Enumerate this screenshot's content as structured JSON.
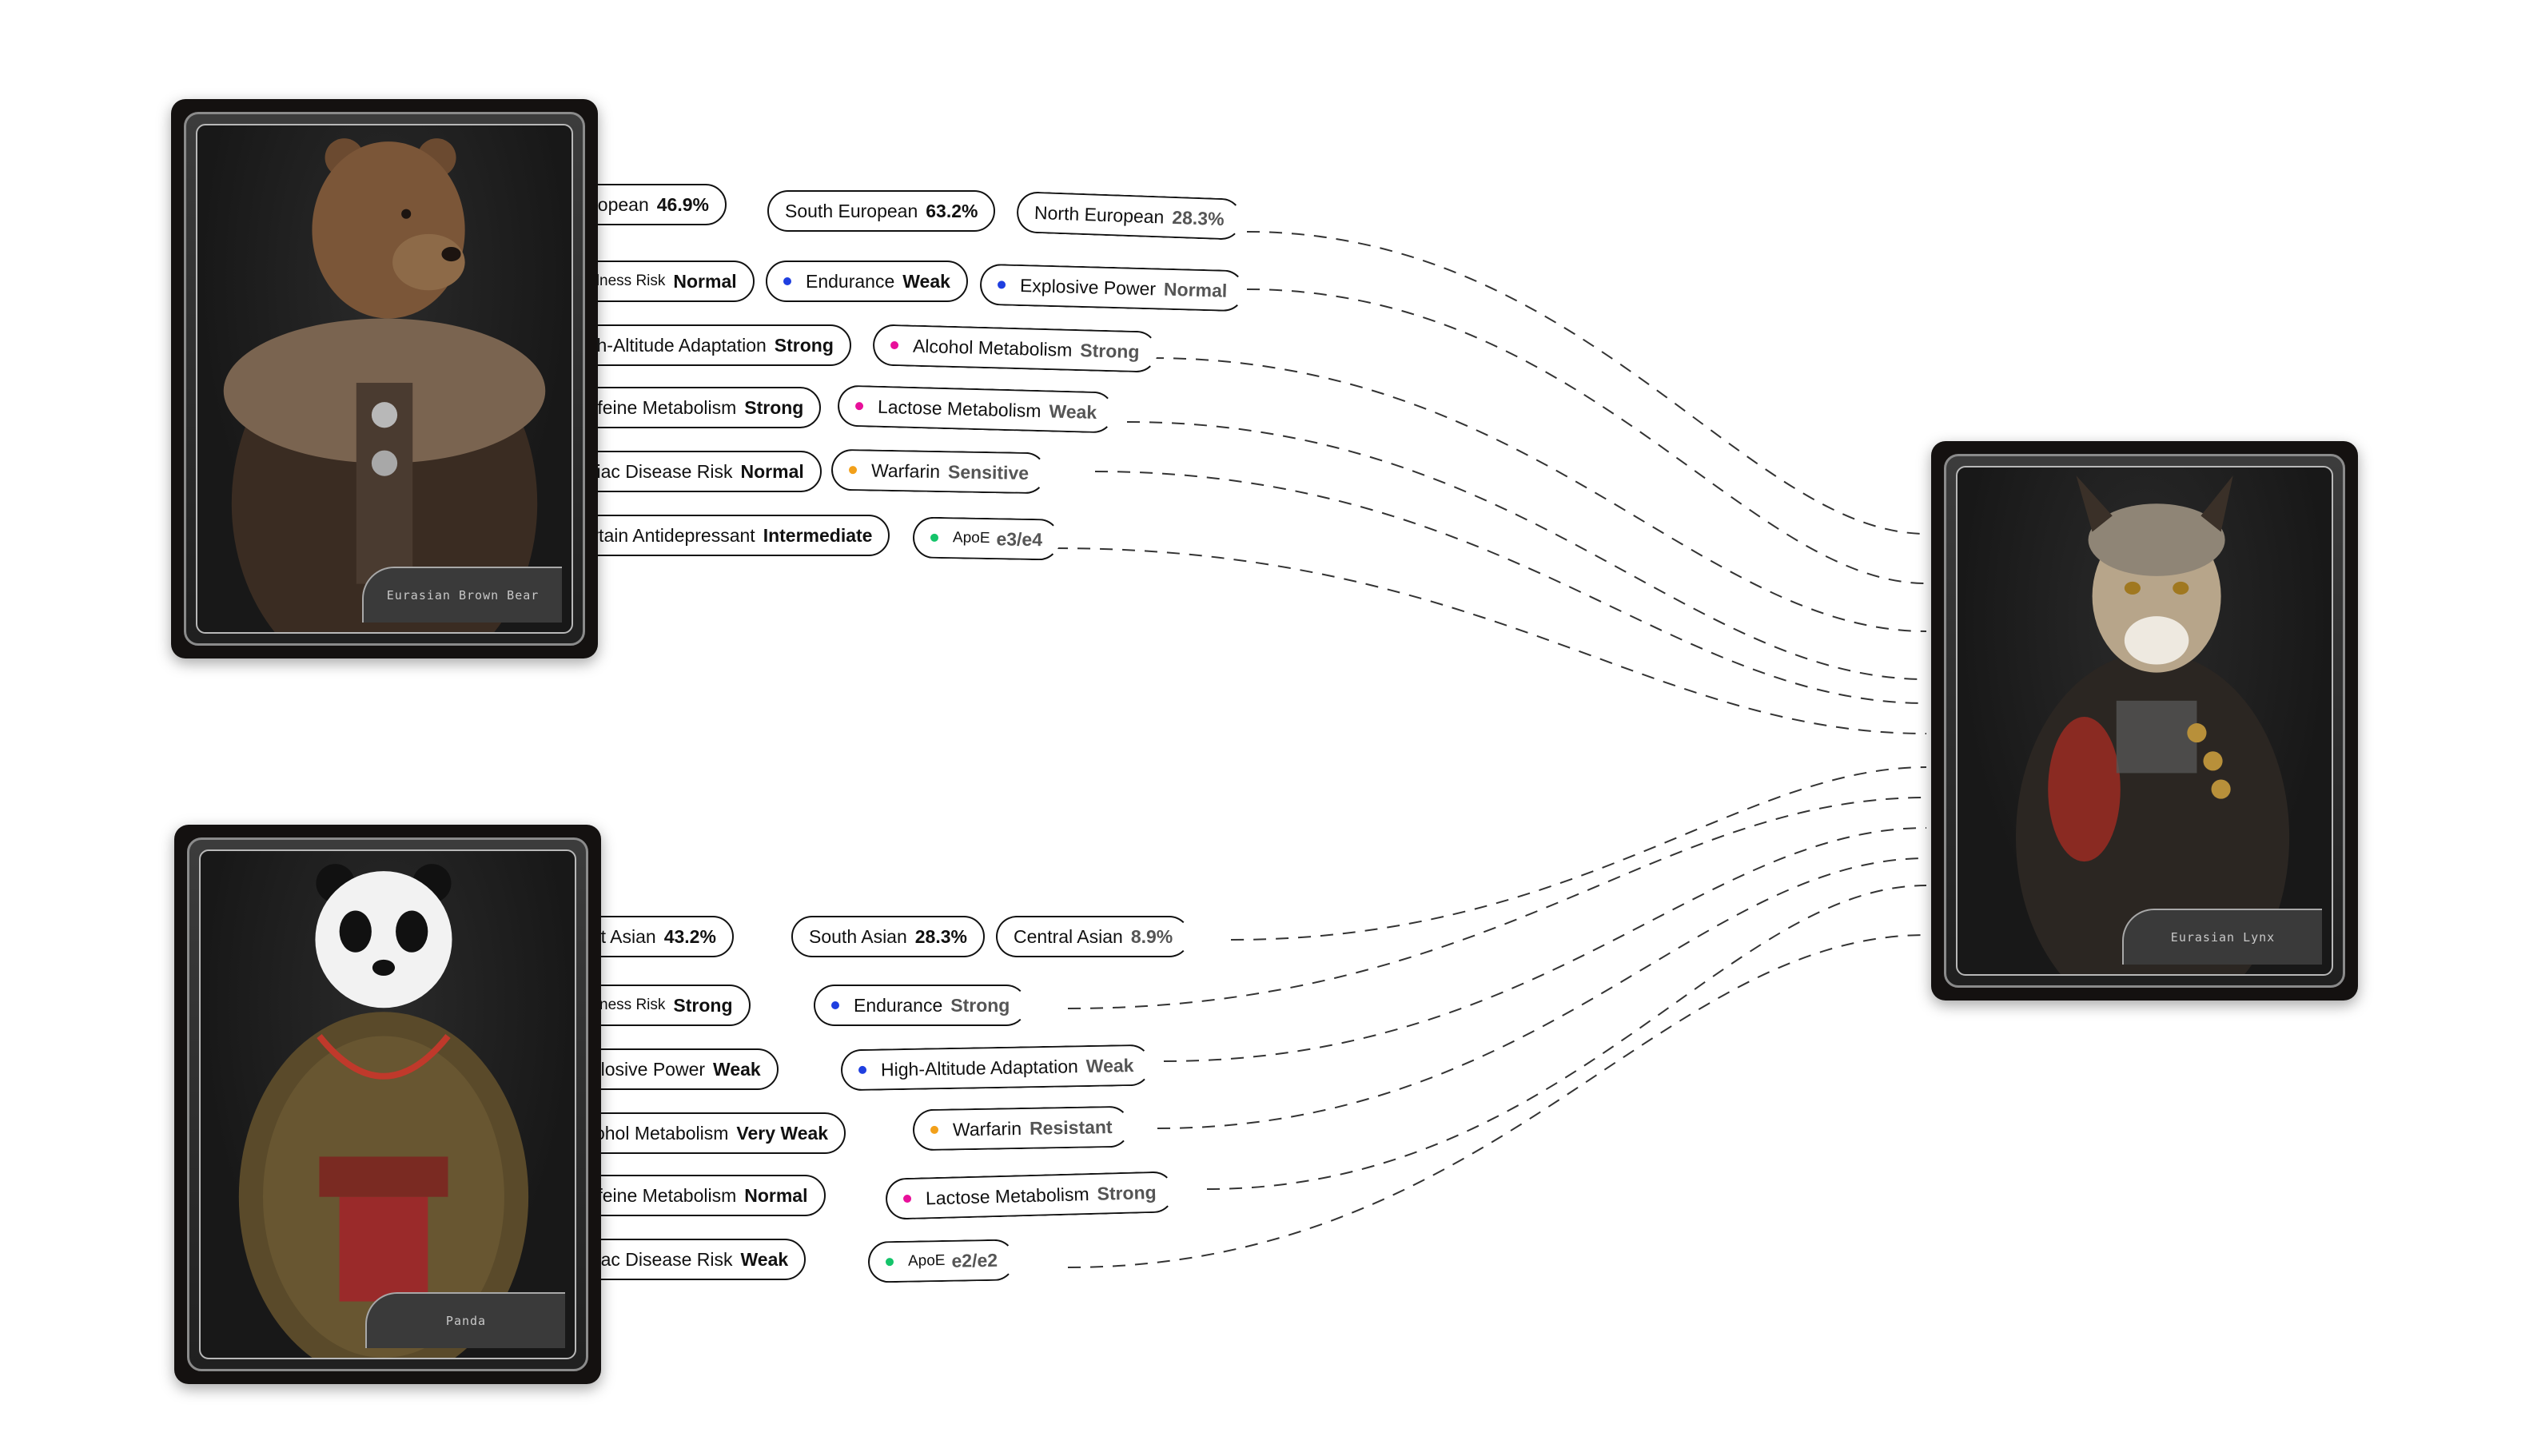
{
  "colors": {
    "blue": "#1f3fe0",
    "magenta": "#e8109a",
    "orange": "#f2a01a",
    "green": "#14c46a"
  },
  "bear": {
    "name": "Eurasian Brown Bear",
    "traits": [
      {
        "label": "European",
        "value": "46.9%"
      },
      {
        "label": "South European",
        "value": "63.2%"
      },
      {
        "label": "North European",
        "value": "28.3%"
      },
      {
        "label": "Baldness Risk",
        "value": "Normal"
      },
      {
        "label": "Endurance",
        "value": "Weak",
        "dot": "blue"
      },
      {
        "label": "Explosive Power",
        "value": "Normal",
        "dot": "blue"
      },
      {
        "label": "High-Altitude Adaptation",
        "value": "Strong"
      },
      {
        "label": "Alcohol Metabolism",
        "value": "Strong",
        "dot": "magenta"
      },
      {
        "label": "Caffeine Metabolism",
        "value": "Strong"
      },
      {
        "label": "Lactose Metabolism",
        "value": "Weak",
        "dot": "magenta"
      },
      {
        "label": "Celiac Disease Risk",
        "value": "Normal"
      },
      {
        "label": "Warfarin",
        "value": "Sensitive",
        "dot": "orange"
      },
      {
        "label": "Certain Antidepressant",
        "value": "Intermediate"
      },
      {
        "label": "ApoE",
        "value": "e3/e4",
        "dot": "green"
      }
    ]
  },
  "panda": {
    "name": "Panda",
    "traits": [
      {
        "label": "East Asian",
        "value": "43.2%"
      },
      {
        "label": "South Asian",
        "value": "28.3%"
      },
      {
        "label": "Central Asian",
        "value": "8.9%"
      },
      {
        "label": "Baldness Risk",
        "value": "Strong"
      },
      {
        "label": "Endurance",
        "value": "Strong",
        "dot": "blue"
      },
      {
        "label": "Explosive Power",
        "value": "Weak"
      },
      {
        "label": "High-Altitude Adaptation",
        "value": "Weak",
        "dot": "blue"
      },
      {
        "label": "Alcohol Metabolism",
        "value": "Very Weak"
      },
      {
        "label": "Warfarin",
        "value": "Resistant",
        "dot": "orange"
      },
      {
        "label": "Caffeine Metabolism",
        "value": "Normal"
      },
      {
        "label": "Lactose Metabolism",
        "value": "Strong",
        "dot": "magenta"
      },
      {
        "label": "Celiac Disease Risk",
        "value": "Weak"
      },
      {
        "label": "ApoE",
        "value": "e2/e2",
        "dot": "green"
      }
    ]
  },
  "lynx": {
    "name": "Eurasian Lynx"
  }
}
